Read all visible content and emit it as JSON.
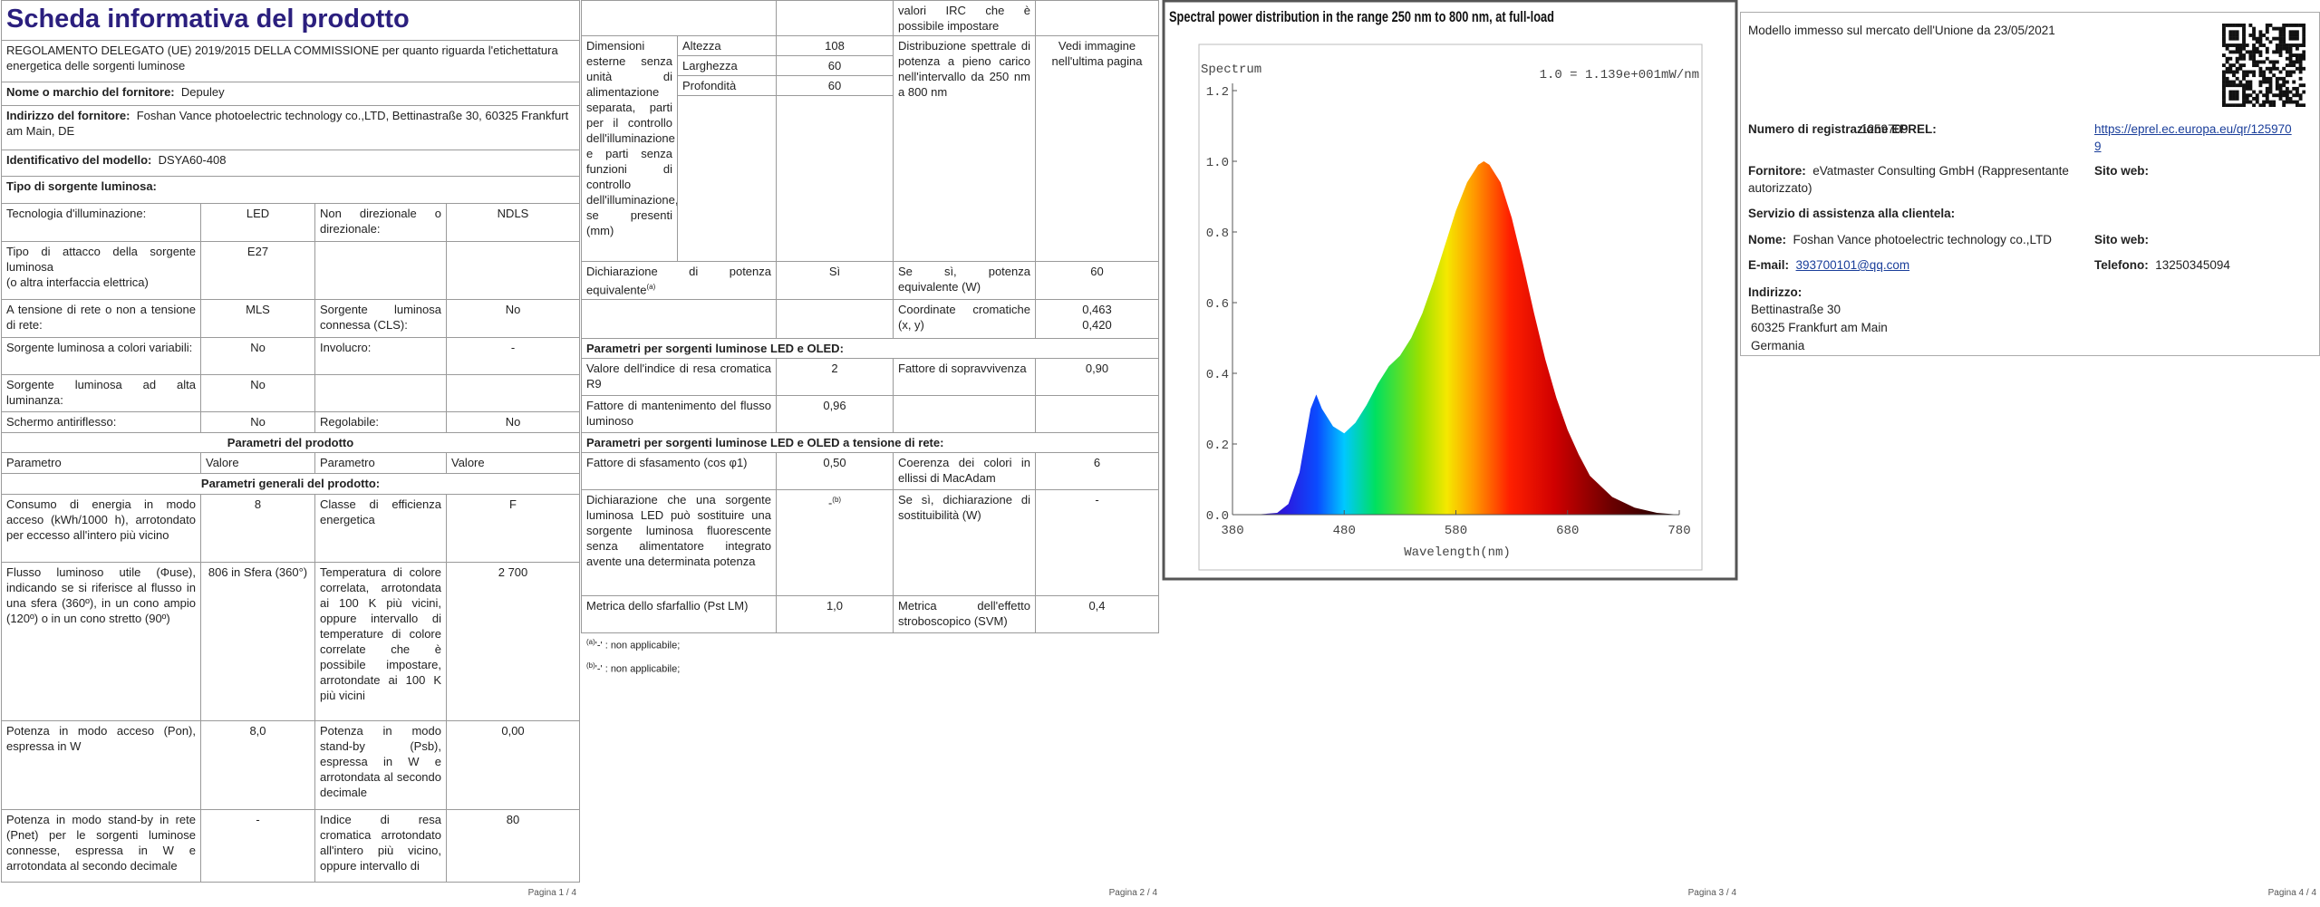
{
  "page1": {
    "title": "Scheda informativa del prodotto",
    "regulation": "REGOLAMENTO DELEGATO (UE) 2019/2015 DELLA COMMISSIONE per quanto riguarda l'etichettatura energetica delle sorgenti luminose",
    "supplier_name": {
      "label": "Nome o marchio del fornitore:",
      "value": "Depuley"
    },
    "supplier_address": {
      "label": "Indirizzo del fornitore:",
      "value": "Foshan Vance photoelectric technology co.,LTD, Bettinastraße 30, 60325 Frankfurt am Main, DE"
    },
    "model_id": {
      "label": "Identificativo del modello:",
      "value": "DSYA60-408"
    },
    "source_type_heading": "Tipo di sorgente luminosa:",
    "source_rows": [
      [
        "Tecnologia d'illuminazione:",
        "LED",
        "Non direzionale o direzionale:",
        "NDLS"
      ],
      [
        "Tipo di attacco della sorgente luminosa\n(o altra interfaccia elettrica)",
        "E27",
        null,
        null
      ],
      [
        "A tensione di rete o non a tensione di rete:",
        "MLS",
        "Sorgente luminosa connessa (CLS):",
        "No"
      ],
      [
        "Sorgente luminosa a colori variabili:",
        "No",
        "Involucro:",
        "-"
      ],
      [
        "Sorgente luminosa ad alta luminanza:",
        "No",
        null,
        null
      ],
      [
        "Schermo antiriflesso:",
        "No",
        "Regolabile:",
        "No"
      ]
    ],
    "product_params_heading": "Parametri del prodotto",
    "columns": [
      "Parametro",
      "Valore",
      "Parametro",
      "Valore"
    ],
    "general_heading": "Parametri generali del prodotto:",
    "general_rows": [
      [
        "Consumo di energia in modo acceso (kWh/1000 h), arrotondato per eccesso all'intero più vicino",
        "8",
        "Classe di efficienza energetica",
        "F"
      ],
      [
        "Flusso luminoso utile (Φuse), indicando se si riferisce al flusso in una sfera (360º), in un cono ampio (120º) o in un cono stretto (90º)",
        "806 in Sfera (360°)",
        "Temperatura di colore correlata, arrotondata ai 100 K più vicini, oppure intervallo di temperature di colore correlate che è possibile impostare, arrotondate ai 100 K più vicini",
        "2 700"
      ],
      [
        "Potenza in modo acceso (Pon), espressa in W",
        "8,0",
        "Potenza in modo stand-by (Psb), espressa in W e arrotondata al secondo decimale",
        "0,00"
      ],
      [
        "Potenza in modo stand-by in rete (Pnet) per le sorgenti luminose connesse, espressa in W e arrotondata al secondo decimale",
        "-",
        "Indice di resa cromatica arrotondato all'intero più vicino, oppure intervallo di",
        "80"
      ]
    ],
    "footer": "Pagina 1 / 4"
  },
  "page2": {
    "continuation": "valori IRC che è possibile impostare",
    "dimensions": {
      "label": "Dimensioni esterne senza unità di alimentazione separata, parti per il controllo dell'illuminazione e parti senza funzioni di controllo dell'illuminazione, se presenti (mm)",
      "height": {
        "label": "Altezza",
        "value": "108"
      },
      "width": {
        "label": "Larghezza",
        "value": "60"
      },
      "depth": {
        "label": "Profondità",
        "value": "60"
      }
    },
    "spectral": {
      "label": "Distribuzione spettrale di potenza a pieno carico nell'intervallo da 250 nm a 800 nm",
      "value": "Vedi immagine nell'ultima pagina"
    },
    "equivalent": {
      "label": "Dichiarazione di potenza equivalente",
      "note": "(a)",
      "value": "Sì",
      "if_label": "Se sì, potenza equivalente (W)",
      "if_value": "60"
    },
    "chromaticity": {
      "label": "Coordinate cromatiche (x, y)",
      "value": "0,463\n0,420"
    },
    "led_heading": "Parametri per sorgenti luminose LED e OLED:",
    "r9": {
      "label": "Valore dell'indice di resa cromatica R9",
      "value": "2"
    },
    "survival": {
      "label": "Fattore di sopravvivenza",
      "value": "0,90"
    },
    "maintenance": {
      "label": "Fattore di mantenimento del flusso luminoso",
      "value": "0,96"
    },
    "mains_heading": "Parametri per sorgenti luminose LED e OLED a tensione di rete:",
    "displacement": {
      "label": "Fattore di sfasamento (cos φ1)",
      "value": "0,50"
    },
    "macadam": {
      "label": "Coerenza dei colori in ellissi di MacAdam",
      "value": "6"
    },
    "replacement": {
      "label": "Dichiarazione che una sorgente luminosa LED può sostituire una sorgente luminosa fluorescente senza alimentatore integrato avente una determinata potenza",
      "value": "-",
      "note": "(b)",
      "if_label": "Se sì, dichiarazione di sostituibilità (W)",
      "if_value": "-"
    },
    "flicker": {
      "label": "Metrica dello sfarfallio (Pst LM)",
      "value": "1,0"
    },
    "stroboscopic": {
      "label": "Metrica dell'effetto stroboscopico (SVM)",
      "value": "0,4"
    },
    "notes": [
      {
        "marker": "(a)",
        "text": "'-' : non applicabile;"
      },
      {
        "marker": "(b)",
        "text": "'-' : non applicabile;"
      }
    ],
    "footer": "Pagina 2 / 4"
  },
  "chart_data": {
    "type": "area",
    "title": "Spectral power distribution in the range 250 nm to 800 nm, at full-load",
    "y_label": "Spectrum",
    "annotation": "1.0 = 1.139e+001mW/nm",
    "x_label": "Wavelength(nm)",
    "x": [
      380,
      400,
      420,
      430,
      440,
      450,
      455,
      460,
      470,
      480,
      490,
      500,
      510,
      520,
      530,
      540,
      550,
      560,
      570,
      580,
      590,
      600,
      605,
      610,
      620,
      630,
      640,
      650,
      660,
      670,
      680,
      690,
      700,
      720,
      740,
      760,
      780
    ],
    "values": [
      0,
      0,
      0.005,
      0.03,
      0.12,
      0.3,
      0.34,
      0.3,
      0.25,
      0.23,
      0.26,
      0.31,
      0.37,
      0.42,
      0.45,
      0.5,
      0.57,
      0.66,
      0.76,
      0.86,
      0.94,
      0.99,
      1.0,
      0.99,
      0.94,
      0.84,
      0.71,
      0.57,
      0.44,
      0.33,
      0.24,
      0.17,
      0.11,
      0.05,
      0.02,
      0.005,
      0
    ],
    "xlim": [
      380,
      780
    ],
    "ylim": [
      0,
      1.2
    ],
    "xticks": [
      380,
      480,
      580,
      680,
      780
    ],
    "yticks": [
      {
        "value": 0,
        "label": "0.0"
      },
      0.2,
      0.4,
      0.6,
      0.8,
      {
        "value": 1,
        "label": "1.0"
      },
      1.2
    ]
  },
  "page3": {
    "footer": "Pagina 3 / 4"
  },
  "page4": {
    "market_date": "Modello immesso sul mercato dell'Unione da 23/05/2021",
    "eprel": {
      "label": "Numero di registrazione EPREL:",
      "value": "1259709",
      "link": "https://eprel.ec.europa.eu/qr/1259709"
    },
    "supplier": {
      "label": "Fornitore:",
      "value": "eVatmaster Consulting GmbH (Rappresentante autorizzato)",
      "website_label": "Sito web:"
    },
    "service_heading": "Servizio di assistenza alla clientela:",
    "service_name": {
      "label": "Nome:",
      "value": "Foshan Vance photoelectric technology co.,LTD",
      "website_label": "Sito web:"
    },
    "email": {
      "label": "E-mail:",
      "value": "393700101@qq.com"
    },
    "phone": {
      "label": "Telefono:",
      "value": "13250345094"
    },
    "address": {
      "label": "Indirizzo:",
      "lines": [
        "Bettinastraße 30",
        "60325 Frankfurt am Main",
        "Germania"
      ]
    },
    "footer": "Pagina 4 / 4"
  }
}
